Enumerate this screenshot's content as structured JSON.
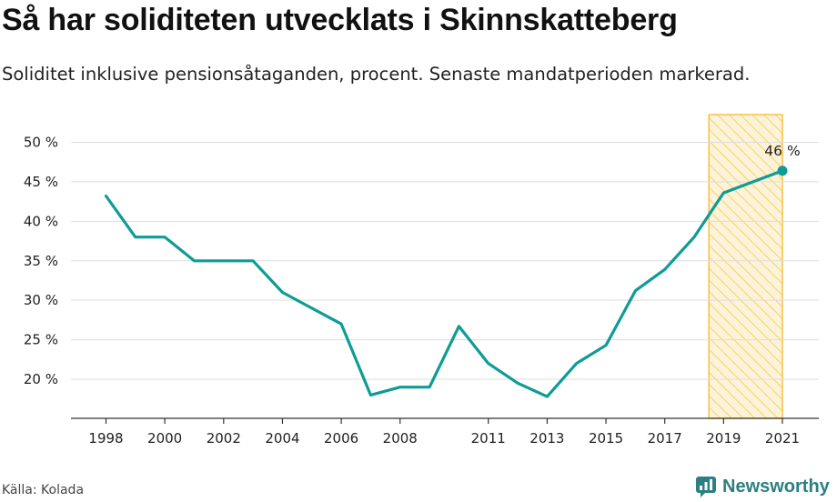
{
  "header": {
    "title": "Så har soliditeten utvecklats i Skinnskatteberg",
    "subtitle": "Soliditet inklusive pensionsåtaganden, procent. Senaste mandatperioden markerad."
  },
  "footer": {
    "source": "Källa: Kolada",
    "brand": "Newsworthy"
  },
  "colors": {
    "line": "#0e9c95",
    "highlight_stroke": "#f5c242",
    "highlight_fill": "#fdf3d8",
    "grid": "#dddddd",
    "axis": "#333333",
    "brand": "#2d7f82"
  },
  "chart_data": {
    "type": "line",
    "x_ticks": [
      1998,
      2000,
      2002,
      2004,
      2006,
      2008,
      2011,
      2013,
      2015,
      2017,
      2019,
      2021
    ],
    "y_ticks": [
      20,
      25,
      30,
      35,
      40,
      45,
      50
    ],
    "y_tick_suffix": " %",
    "ylim": [
      15,
      53.5
    ],
    "xlim": [
      1997.1,
      2021.6
    ],
    "grid": "horizontal",
    "highlight_period": [
      2018.5,
      2021
    ],
    "series": [
      {
        "x": [
          1998,
          1999,
          2000,
          2001,
          2002,
          2003,
          2004,
          2005,
          2006,
          2007,
          2008,
          2009,
          2010,
          2011,
          2012,
          2013,
          2014,
          2015,
          2016,
          2017,
          2018,
          2019,
          2020,
          2021
        ],
        "values": [
          43.2,
          38,
          38,
          35,
          35,
          35,
          31,
          29,
          27,
          18,
          19,
          19,
          26.7,
          22,
          19.5,
          17.8,
          22,
          24.3,
          31.2,
          33.9,
          38,
          43.6,
          45,
          46.4
        ]
      }
    ],
    "annotation": {
      "x": 2021,
      "y": 46.4,
      "label": "46 %"
    }
  }
}
